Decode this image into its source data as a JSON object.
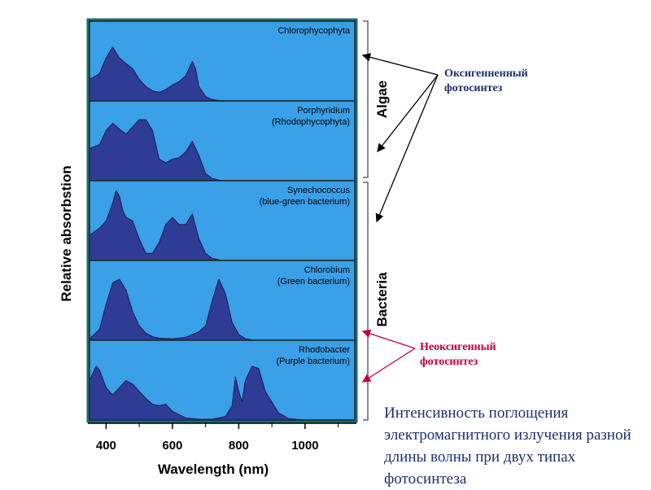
{
  "annotations": {
    "oxygenic": "Оксигенненный фотосинтез",
    "anoxygenic": "Неоксигенный фотосинтез",
    "oxygenic_color": "#1f2f6f",
    "anoxygenic_color": "#c0003c"
  },
  "caption": "Интенсивность поглощения электромагнитного излучения разной длины волны при двух типах фотосинтеза",
  "chart_data": {
    "type": "area",
    "title": "",
    "xlabel": "Wavelength (nm)",
    "ylabel": "Relative absorbstion",
    "xlim": [
      350,
      1150
    ],
    "xticks": [
      400,
      600,
      800,
      1000
    ],
    "grid": false,
    "colors": {
      "background": "#3aa0e8",
      "fill": "#2e3c96",
      "stroke": "#1a1e4a"
    },
    "groups": [
      {
        "label": "Algae",
        "panels": [
          0,
          1
        ]
      },
      {
        "label": "Bacteria",
        "panels": [
          2,
          3,
          4
        ]
      }
    ],
    "panels": [
      {
        "name": "Chlorophycophyta",
        "subtitle": "",
        "x": [
          350,
          380,
          400,
          420,
          440,
          460,
          480,
          500,
          520,
          540,
          560,
          580,
          600,
          620,
          640,
          660,
          670,
          680,
          700,
          720,
          750
        ],
        "y": [
          0.3,
          0.38,
          0.6,
          0.75,
          0.6,
          0.52,
          0.45,
          0.3,
          0.2,
          0.14,
          0.12,
          0.16,
          0.22,
          0.27,
          0.35,
          0.55,
          0.45,
          0.2,
          0.06,
          0.02,
          0
        ]
      },
      {
        "name": "Porphyridium",
        "subtitle": "(Rhodophycophyta)",
        "x": [
          350,
          380,
          400,
          420,
          440,
          460,
          480,
          500,
          520,
          540,
          560,
          580,
          600,
          620,
          640,
          660,
          680,
          700,
          720,
          750
        ],
        "y": [
          0.45,
          0.5,
          0.7,
          0.8,
          0.72,
          0.65,
          0.75,
          0.85,
          0.85,
          0.7,
          0.3,
          0.25,
          0.3,
          0.32,
          0.4,
          0.55,
          0.35,
          0.1,
          0.03,
          0
        ]
      },
      {
        "name": "Synechococcus",
        "subtitle": "(blue-green bacterium)",
        "x": [
          350,
          380,
          400,
          420,
          430,
          440,
          450,
          460,
          480,
          500,
          520,
          540,
          560,
          580,
          600,
          620,
          640,
          660,
          680,
          700,
          720,
          750
        ],
        "y": [
          0.35,
          0.45,
          0.55,
          0.8,
          0.97,
          0.9,
          0.7,
          0.6,
          0.55,
          0.3,
          0.1,
          0.1,
          0.25,
          0.5,
          0.6,
          0.5,
          0.5,
          0.65,
          0.3,
          0.1,
          0.03,
          0
        ]
      },
      {
        "name": "Chlorobium",
        "subtitle": "(Green bacterium)",
        "x": [
          350,
          380,
          400,
          420,
          440,
          460,
          480,
          500,
          520,
          540,
          560,
          600,
          640,
          680,
          700,
          720,
          740,
          760,
          780,
          800,
          820,
          850
        ],
        "y": [
          0.02,
          0.15,
          0.5,
          0.8,
          0.85,
          0.7,
          0.4,
          0.2,
          0.1,
          0.05,
          0.03,
          0.02,
          0.04,
          0.12,
          0.2,
          0.55,
          0.85,
          0.65,
          0.25,
          0.08,
          0.02,
          0
        ]
      },
      {
        "name": "Rhodobacter",
        "subtitle": "(Purple bacterium)",
        "x": [
          350,
          370,
          380,
          400,
          420,
          440,
          460,
          480,
          500,
          520,
          540,
          560,
          580,
          600,
          640,
          680,
          720,
          760,
          780,
          790,
          800,
          810,
          820,
          840,
          860,
          880,
          900,
          920,
          950,
          1000
        ],
        "y": [
          0.55,
          0.75,
          0.7,
          0.45,
          0.35,
          0.45,
          0.55,
          0.5,
          0.4,
          0.3,
          0.22,
          0.2,
          0.22,
          0.12,
          0.03,
          0.01,
          0.01,
          0.05,
          0.2,
          0.6,
          0.4,
          0.25,
          0.55,
          0.75,
          0.72,
          0.4,
          0.25,
          0.1,
          0.02,
          0
        ]
      }
    ]
  }
}
